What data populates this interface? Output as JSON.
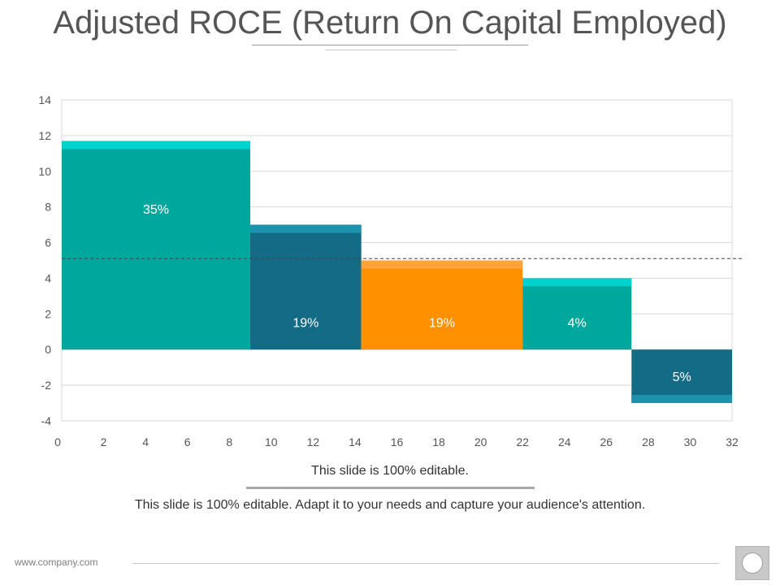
{
  "page": {
    "title": "Adjusted ROCE (Return On Capital Employed)",
    "caption": "This slide is 100% editable.",
    "subcaption": "This slide is 100% editable. Adapt it to your needs and capture your audience's attention.",
    "footer_url": "www.company.com",
    "footer_icon": "circle-logo-icon"
  },
  "colors": {
    "teal": "#00a79d",
    "teal_cap": "#00d2ce",
    "dark_blue": "#136b85",
    "dark_blue_cap": "#1c92ad",
    "orange": "#ff9000",
    "orange_cap": "#ffa33a",
    "gridline": "#d9d9d9",
    "axis_text": "#555555"
  },
  "chart_data": {
    "type": "bar",
    "variant": "variable-width",
    "xlim": [
      0,
      32
    ],
    "ylim": [
      -4,
      14
    ],
    "x_ticks": [
      0,
      2,
      4,
      6,
      8,
      10,
      12,
      14,
      16,
      18,
      20,
      22,
      24,
      26,
      28,
      30,
      32
    ],
    "y_ticks": [
      -4,
      -2,
      0,
      2,
      4,
      6,
      8,
      10,
      12,
      14
    ],
    "grid": true,
    "reference_line": 5.1,
    "bars": [
      {
        "x_start": 0,
        "x_end": 9,
        "value": 11.7,
        "label": "35%",
        "fill": "#00a79d",
        "cap": "#00d2ce"
      },
      {
        "x_start": 9,
        "x_end": 14.3,
        "value": 7.0,
        "label": "19%",
        "fill": "#136b85",
        "cap": "#1c92ad"
      },
      {
        "x_start": 14.3,
        "x_end": 22,
        "value": 5.0,
        "label": "19%",
        "fill": "#ff9000",
        "cap": "#ffa33a"
      },
      {
        "x_start": 22,
        "x_end": 27.2,
        "value": 4.0,
        "label": "4%",
        "fill": "#00a79d",
        "cap": "#00d2ce"
      },
      {
        "x_start": 27.2,
        "x_end": 32,
        "value": -3.0,
        "label": "5%",
        "fill": "#136b85",
        "cap": "#1c92ad"
      }
    ]
  }
}
